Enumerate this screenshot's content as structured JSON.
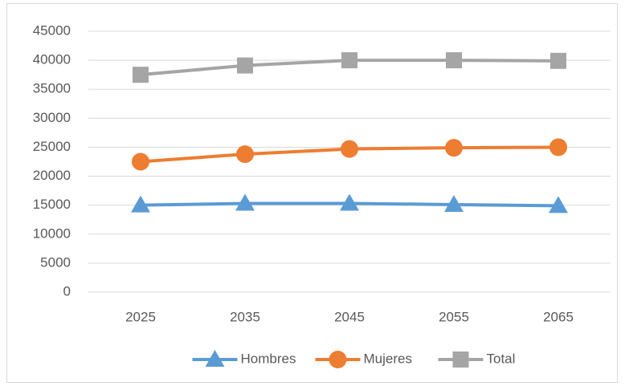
{
  "chart_data": {
    "type": "line",
    "categories": [
      "2025",
      "2035",
      "2045",
      "2055",
      "2065"
    ],
    "series": [
      {
        "name": "Hombres",
        "color": "#5b9bd5",
        "marker": "triangle",
        "values": [
          15000,
          15300,
          15300,
          15100,
          14900
        ]
      },
      {
        "name": "Mujeres",
        "color": "#ed7d31",
        "marker": "circle",
        "values": [
          22500,
          23800,
          24700,
          24900,
          25000
        ]
      },
      {
        "name": "Total",
        "color": "#a5a5a5",
        "marker": "square",
        "values": [
          37500,
          39100,
          40000,
          40000,
          39900
        ]
      }
    ],
    "ylim": [
      0,
      45000
    ],
    "yticks": [
      0,
      5000,
      10000,
      15000,
      20000,
      25000,
      30000,
      35000,
      40000,
      45000
    ],
    "grid": true,
    "legend": "bottom"
  }
}
